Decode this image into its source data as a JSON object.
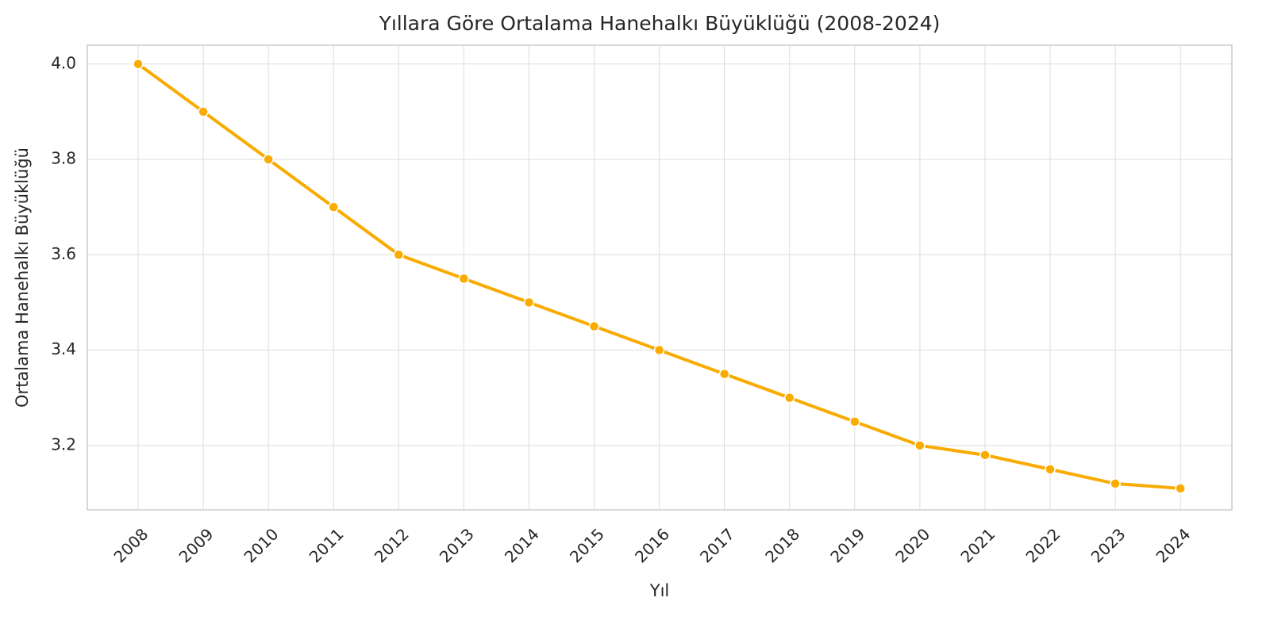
{
  "chart_data": {
    "type": "line",
    "title": "Yıllara Göre Ortalama Hanehalkı Büyüklüğü (2008-2024)",
    "x_label": "Yıl",
    "y_label": "Ortalama Hanehalkı Büyüklüğü",
    "x": [
      2008,
      2009,
      2010,
      2011,
      2012,
      2013,
      2014,
      2015,
      2016,
      2017,
      2018,
      2019,
      2020,
      2021,
      2022,
      2023,
      2024
    ],
    "series": [
      {
        "color": "#f9ab00",
        "values": [
          4.0,
          3.9,
          3.8,
          3.7,
          3.6,
          3.55,
          3.5,
          3.45,
          3.4,
          3.35,
          3.3,
          3.25,
          3.2,
          3.18,
          3.15,
          3.12,
          3.11
        ]
      }
    ],
    "xlim": [
      2007.22,
      2024.79
    ],
    "xticks": [
      2008,
      2009,
      2010,
      2011,
      2012,
      2013,
      2014,
      2015,
      2016,
      2017,
      2018,
      2019,
      2020,
      2021,
      2022,
      2023,
      2024
    ],
    "ylim": [
      3.065,
      4.0395
    ],
    "yticks": [
      {
        "value": 3.2,
        "label": "3.2"
      },
      {
        "value": 3.4,
        "label": "3.4"
      },
      {
        "value": 3.6,
        "label": "3.6"
      },
      {
        "value": 3.8,
        "label": "3.8"
      },
      {
        "value": 4.0,
        "label": "4.0"
      }
    ],
    "grid": true
  }
}
